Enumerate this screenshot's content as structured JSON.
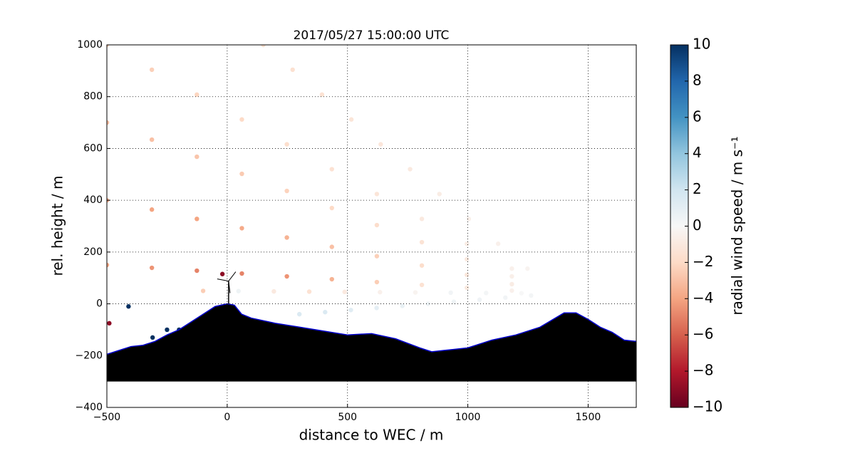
{
  "chart_data": {
    "type": "scatter",
    "title": "2017/05/27 15:00:00 UTC",
    "xlabel": "distance to WEC / m",
    "ylabel": "rel. height / m",
    "xlim": [
      -500,
      1700
    ],
    "ylim": [
      -400,
      1000
    ],
    "xticks": [
      {
        "value": -500,
        "label": "−500"
      },
      0,
      500,
      1000,
      1500
    ],
    "yticks": [
      {
        "value": -400,
        "label": "−400"
      },
      {
        "value": -200,
        "label": "−200"
      },
      0,
      200,
      400,
      600,
      800,
      1000
    ],
    "grid": true,
    "colorbar_label": "radial wind speed / m s⁻¹",
    "clim": [
      -10,
      10
    ],
    "cticks": [
      {
        "value": -10,
        "label": "−10"
      },
      {
        "value": -8,
        "label": "−8"
      },
      {
        "value": -6,
        "label": "−6"
      },
      {
        "value": -4,
        "label": "−4"
      },
      {
        "value": -2,
        "label": "−2"
      },
      0,
      2,
      4,
      6,
      8,
      10
    ],
    "colormap": [
      "#67001f",
      "#b2182b",
      "#d6604d",
      "#f4a582",
      "#fddbc7",
      "#f7f7f7",
      "#d1e5f0",
      "#92c5de",
      "#4393c3",
      "#2166ac",
      "#053061"
    ],
    "scatter": {
      "x": [
        1248,
        1126,
        1004,
        882,
        760,
        638,
        516,
        394,
        272,
        150,
        1183,
        996,
        809,
        622,
        435,
        248,
        61,
        -126,
        -313,
        -500,
        1183,
        996,
        809,
        622,
        435,
        248,
        61,
        -126,
        -313,
        -500,
        1183,
        996,
        809,
        622,
        435,
        248,
        61,
        -126,
        -313,
        -500,
        1183,
        996,
        809,
        622,
        435,
        248,
        61,
        -126,
        -313,
        -500,
        1223,
        1076,
        929,
        782,
        635,
        488,
        341,
        194,
        47,
        -100,
        1263,
        1156,
        1049,
        942,
        835,
        728,
        621,
        514,
        407,
        300,
        -490,
        -410,
        -310,
        -250,
        -200,
        -20
      ],
      "values": [
        136,
        232,
        328,
        424,
        520,
        616,
        712,
        808,
        904,
        1000,
        136,
        232,
        328,
        424,
        520,
        616,
        712,
        808,
        904,
        1000,
        106,
        172,
        238,
        304,
        370,
        436,
        502,
        568,
        634,
        700,
        76,
        112,
        148,
        184,
        220,
        256,
        292,
        328,
        364,
        400,
        51,
        62,
        73,
        84,
        95,
        106,
        117,
        128,
        139,
        150,
        41,
        42,
        43,
        44,
        45,
        46,
        47,
        48,
        49,
        50,
        32,
        24,
        16,
        8,
        0,
        -8,
        -16,
        -24,
        -32,
        -40,
        -75,
        -10,
        -130,
        -100,
        -100,
        115
      ],
      "wind_speed": [
        -0.3,
        -0.5,
        -0.6,
        -0.8,
        -1,
        -1.2,
        -1.3,
        -1.5,
        -1.6,
        -1.8,
        -0.5,
        -0.8,
        -1,
        -1.3,
        -1.5,
        -1.8,
        -2,
        -2.2,
        -2.4,
        -2.5,
        -0.6,
        -1,
        -1.4,
        -1.8,
        -2,
        -2.3,
        -2.6,
        -2.8,
        -3,
        -3.2,
        -0.8,
        -1.2,
        -1.8,
        -2.4,
        -3,
        -3.5,
        -3.8,
        -4,
        -4,
        -3.8,
        -0.5,
        -1,
        -1.5,
        -2.5,
        -3.5,
        -4.5,
        -5,
        -5,
        -4.5,
        -4,
        0,
        0.2,
        0.3,
        -0.3,
        -0.5,
        -1,
        -1.5,
        -1,
        0.5,
        -2.5,
        0.2,
        0.3,
        0.4,
        0.5,
        0.6,
        0.8,
        1,
        1.2,
        1.5,
        1.5,
        -9,
        10,
        10,
        10,
        10,
        -9
      ]
    },
    "terrain": {
      "color": "#000000",
      "edge_color": "#0000cc",
      "base": -300,
      "x": [
        -500,
        -450,
        -400,
        -350,
        -300,
        -250,
        -200,
        -150,
        -100,
        -50,
        0,
        30,
        60,
        100,
        200,
        300,
        400,
        500,
        600,
        700,
        800,
        850,
        900,
        1000,
        1100,
        1200,
        1300,
        1400,
        1450,
        1500,
        1550,
        1600,
        1650,
        1700
      ],
      "values": [
        -195,
        -180,
        -165,
        -160,
        -145,
        -120,
        -100,
        -70,
        -40,
        -10,
        0,
        -5,
        -40,
        -55,
        -75,
        -90,
        -105,
        -120,
        -115,
        -135,
        -170,
        -185,
        -180,
        -170,
        -140,
        -120,
        -90,
        -35,
        -35,
        -60,
        -90,
        -110,
        -140,
        -145
      ]
    }
  }
}
